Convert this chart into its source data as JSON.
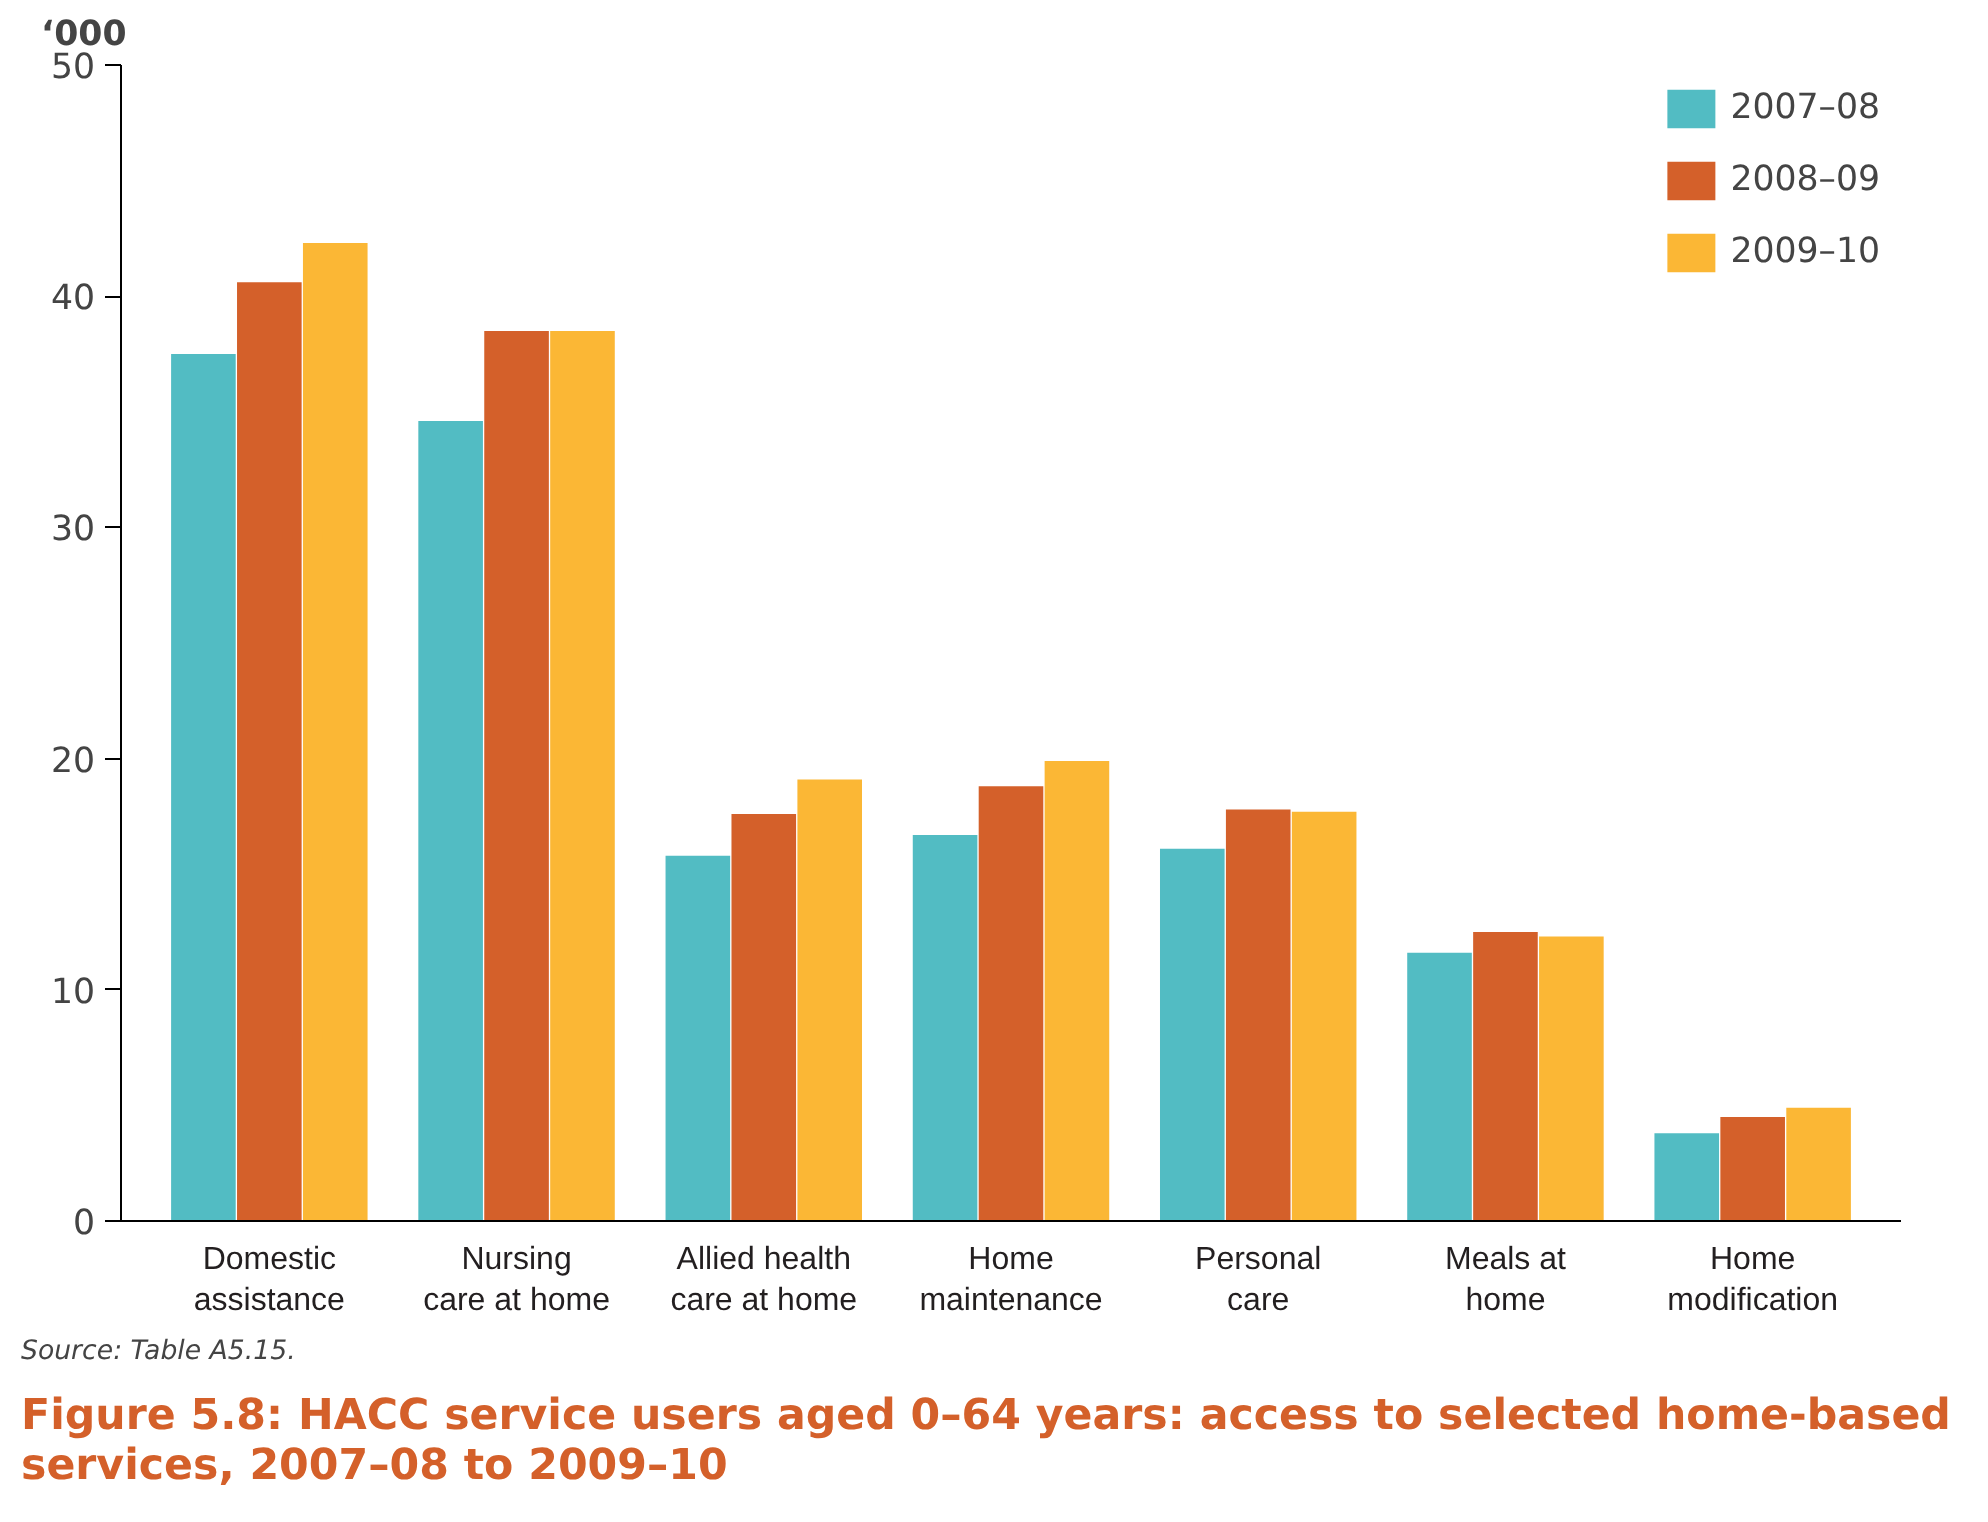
{
  "chart_data": {
    "type": "bar",
    "title": "Figure 5.8: HACC service users aged 0–64 years: access to selected home-based\nservices, 2007–08 to 2009–10",
    "ylabel": "‘000",
    "annotations": [
      "Source: Table A5.15."
    ],
    "categories": [
      "Domestic\nassistance",
      "Nursing\ncare at home",
      "Allied health\ncare at home",
      "Home\nmaintenance",
      "Personal\ncare",
      "Meals at\nhome",
      "Home\nmodification"
    ],
    "series": [
      {
        "name": "2007–08",
        "color": "#52bcc3",
        "values": [
          37.5,
          34.6,
          15.8,
          16.7,
          16.1,
          11.6,
          3.8
        ]
      },
      {
        "name": "2008–09",
        "color": "#d4602a",
        "values": [
          40.6,
          38.5,
          17.6,
          18.8,
          17.8,
          12.5,
          4.5
        ]
      },
      {
        "name": "2009–10",
        "color": "#fbb735",
        "values": [
          42.3,
          38.5,
          19.1,
          19.9,
          17.7,
          12.3,
          4.9
        ]
      }
    ],
    "ylim": [
      0,
      50
    ],
    "yticks": [
      0,
      10,
      20,
      30,
      40,
      50
    ],
    "grid": false,
    "legend": "top right"
  }
}
